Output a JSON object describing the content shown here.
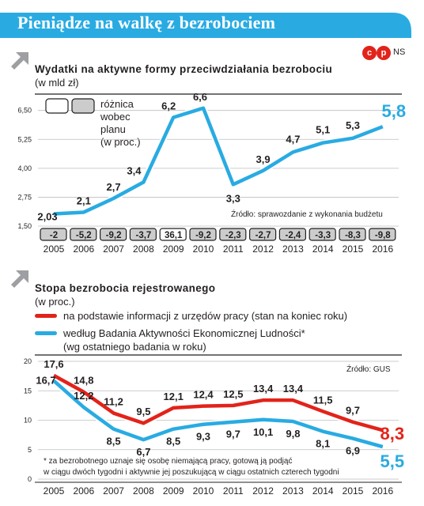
{
  "banner": {
    "title": "Pieniądze na walkę z bezrobociem",
    "color": "#29abe2"
  },
  "logo": {
    "c": "c",
    "p": "p",
    "ns": "NS"
  },
  "chart_data": [
    {
      "type": "line",
      "title": "Wydatki na aktywne formy przeciwdziałania bezrobociu",
      "unit": "(w mld zł)",
      "x": [
        "2005",
        "2006",
        "2007",
        "2008",
        "2009",
        "2010",
        "2011",
        "2012",
        "2013",
        "2014",
        "2015",
        "2016"
      ],
      "series": [
        {
          "values": [
            2.03,
            2.1,
            2.7,
            3.4,
            6.2,
            6.6,
            3.3,
            3.9,
            4.7,
            5.1,
            5.3,
            5.8
          ],
          "labels": [
            "2,03",
            "2,1",
            "2,7",
            "3,4",
            "6,2",
            "6,6",
            "3,3",
            "3,9",
            "4,7",
            "5,1",
            "5,3",
            "5,8"
          ],
          "color": "#29abe2"
        }
      ],
      "yticks": [
        "1,50",
        "2,75",
        "4,00",
        "5,25",
        "6,50"
      ],
      "ytick_values": [
        1.5,
        2.75,
        4.0,
        5.25,
        6.5
      ],
      "ylim": [
        1.5,
        6.9
      ],
      "grid": "horizontal",
      "legend": {
        "text_lines": [
          "różnica",
          "wobec",
          "planu",
          "(w proc.)"
        ],
        "box_colors": [
          "#ffffff",
          "#cccccc"
        ]
      },
      "plan_difference": {
        "labels": [
          "-2",
          "-5,2",
          "-9,2",
          "-3,7",
          "36,1",
          "-9,2",
          "-2,3",
          "-2,7",
          "-2,4",
          "-3,3",
          "-8,3",
          "-9,8"
        ],
        "fills": [
          "#cccccc",
          "#cccccc",
          "#cccccc",
          "#cccccc",
          "#ffffff",
          "#cccccc",
          "#cccccc",
          "#cccccc",
          "#cccccc",
          "#cccccc",
          "#cccccc",
          "#cccccc"
        ]
      },
      "source": "Źródło: sprawozdanie z wykonania budżetu"
    },
    {
      "type": "line",
      "title": "Stopa bezrobocia rejestrowanego",
      "unit": "(w proc.)",
      "x": [
        "2005",
        "2006",
        "2007",
        "2008",
        "2009",
        "2010",
        "2011",
        "2012",
        "2013",
        "2014",
        "2015",
        "2016"
      ],
      "series": [
        {
          "name": "na podstawie informacji z urzędów pracy (stan na koniec roku)",
          "values": [
            17.6,
            14.8,
            11.2,
            9.5,
            12.1,
            12.4,
            12.5,
            13.4,
            13.4,
            11.5,
            9.7,
            8.3
          ],
          "labels": [
            "17,6",
            "14,8",
            "11,2",
            "9,5",
            "12,1",
            "12,4",
            "12,5",
            "13,4",
            "13,4",
            "11,5",
            "9,7",
            "8,3"
          ],
          "color": "#e2231a"
        },
        {
          "name": "według Badania Aktywności Ekonomicznej Ludności*",
          "name_line2": "(wg ostatniego badania w roku)",
          "values": [
            16.7,
            12.2,
            8.5,
            6.7,
            8.5,
            9.3,
            9.7,
            10.1,
            9.8,
            8.1,
            6.9,
            5.5
          ],
          "labels": [
            "16,7",
            "12,2",
            "8,5",
            "6,7",
            "8,5",
            "9,3",
            "9,7",
            "10,1",
            "9,8",
            "8,1",
            "6,9",
            "5,5"
          ],
          "color": "#29abe2"
        }
      ],
      "yticks": [
        "0",
        "5",
        "10",
        "15",
        "20"
      ],
      "ytick_values": [
        0,
        5,
        10,
        15,
        20
      ],
      "ylim": [
        0,
        20
      ],
      "grid": "horizontal",
      "source": "Źródło: GUS",
      "footnote": [
        "* za bezrobotnego uznaje się osobę niemającą pracy, gotową ją podjąć",
        "w ciągu dwóch tygodni i aktywnie jej poszukującą w ciągu ostatnich czterech tygodni"
      ]
    }
  ]
}
